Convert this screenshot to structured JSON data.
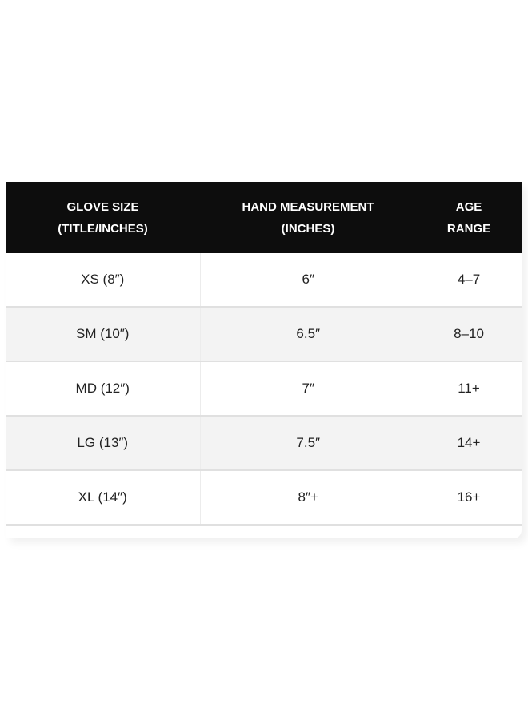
{
  "table": {
    "headers": [
      {
        "line1": "GLOVE SIZE",
        "line2": "(TITLE/INCHES)"
      },
      {
        "line1": "HAND MEASUREMENT",
        "line2": "(INCHES)"
      },
      {
        "line1": "AGE",
        "line2": "RANGE"
      }
    ],
    "rows": [
      [
        "XS (8″)",
        "6″",
        "4–7"
      ],
      [
        "SM (10″)",
        "6.5″",
        "8–10"
      ],
      [
        "MD (12″)",
        "7″",
        "11+"
      ],
      [
        "LG (13″)",
        "7.5″",
        "14+"
      ],
      [
        "XL (14″)",
        "8″+",
        "16+"
      ]
    ]
  },
  "colors": {
    "header_bg": "#0d0d0d",
    "alt_row_bg": "#f3f3f3"
  }
}
